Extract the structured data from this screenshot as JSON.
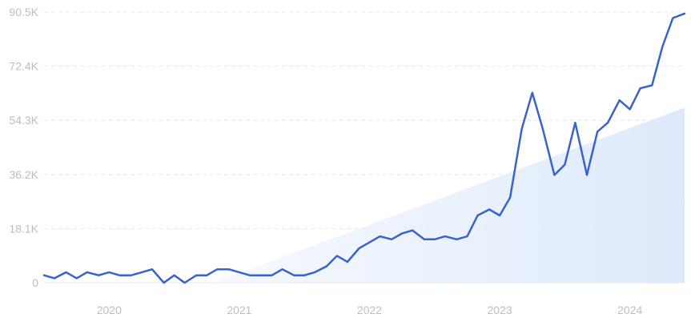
{
  "chart_data": {
    "type": "line",
    "title": "",
    "xlabel": "",
    "ylabel": "",
    "x_ticks": [
      "2020",
      "2021",
      "2022",
      "2023",
      "2024"
    ],
    "x_tick_values": [
      2020.0,
      2021.0,
      2022.0,
      2023.0,
      2024.0
    ],
    "y_ticks": [
      "0",
      "18.1K",
      "36.2K",
      "54.3K",
      "72.4K",
      "90.5K"
    ],
    "y_tick_values": [
      0,
      18100,
      36200,
      54300,
      72400,
      90500
    ],
    "xlim": [
      2019.5,
      2024.42
    ],
    "ylim": [
      0,
      90500
    ],
    "grid": "horizontal dashed",
    "series": [
      {
        "type": "line",
        "color": "#3a62cc",
        "x": [
          2019.5,
          2019.58,
          2019.67,
          2019.75,
          2019.83,
          2019.92,
          2020.0,
          2020.08,
          2020.17,
          2020.25,
          2020.33,
          2020.42,
          2020.5,
          2020.58,
          2020.67,
          2020.75,
          2020.83,
          2020.92,
          2021.0,
          2021.08,
          2021.17,
          2021.25,
          2021.33,
          2021.42,
          2021.5,
          2021.58,
          2021.67,
          2021.75,
          2021.83,
          2021.92,
          2022.0,
          2022.08,
          2022.17,
          2022.25,
          2022.33,
          2022.42,
          2022.5,
          2022.58,
          2022.67,
          2022.75,
          2022.83,
          2022.92,
          2023.0,
          2023.08,
          2023.17,
          2023.25,
          2023.33,
          2023.42,
          2023.5,
          2023.58,
          2023.67,
          2023.75,
          2023.83,
          2023.92,
          2024.0,
          2024.08,
          2024.17,
          2024.25,
          2024.33,
          2024.42
        ],
        "y": [
          2500,
          1500,
          3500,
          1500,
          3500,
          2500,
          3500,
          2500,
          2500,
          3500,
          4500,
          0,
          2500,
          0,
          2500,
          2500,
          4500,
          4500,
          3500,
          2500,
          2500,
          2500,
          4500,
          2500,
          2500,
          3500,
          5500,
          9000,
          7000,
          11500,
          13500,
          15500,
          14500,
          16500,
          17500,
          14500,
          14500,
          15500,
          14500,
          15500,
          22500,
          24500,
          22500,
          28500,
          51500,
          63500,
          51500,
          36000,
          39500,
          53500,
          36000,
          50500,
          53500,
          61000,
          58000,
          65000,
          66000,
          79000,
          88500,
          90000
        ]
      },
      {
        "type": "area",
        "role": "trend",
        "color": "#dce9fb",
        "x": [
          2020.8,
          2024.42
        ],
        "y": [
          0,
          58500
        ]
      }
    ]
  }
}
